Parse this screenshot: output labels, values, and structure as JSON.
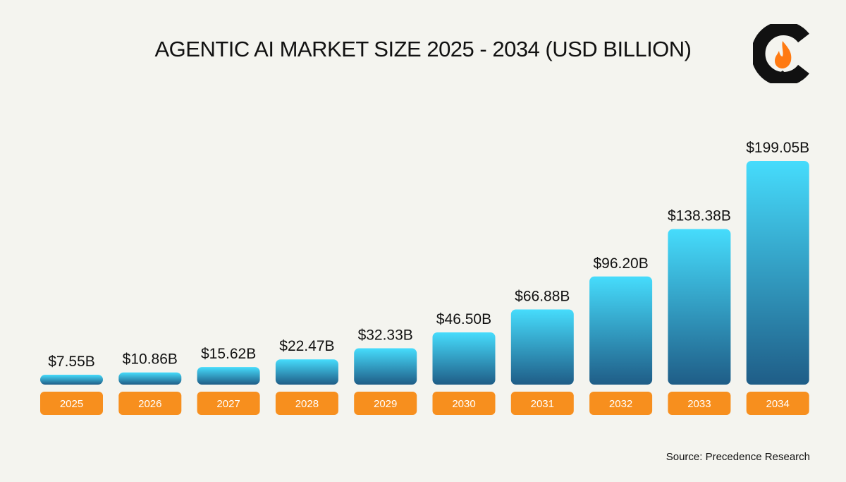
{
  "title": "AGENTIC AI MARKET SIZE 2025 - 2034 (USD BILLION)",
  "source": "Source: Precedence Research",
  "logo": {
    "icon": "flame-in-c-logo",
    "colors": {
      "ring": "#111111",
      "flame": "#ff7a12"
    }
  },
  "colors": {
    "bar_top": "#46dcfc",
    "bar_bottom": "#1f5d87",
    "year_pill": "#f78f1e",
    "background": "#f4f4ef"
  },
  "chart_data": {
    "type": "bar",
    "title": "AGENTIC AI MARKET SIZE 2025 - 2034 (USD BILLION)",
    "categories": [
      "2025",
      "2026",
      "2027",
      "2028",
      "2029",
      "2030",
      "2031",
      "2032",
      "2033",
      "2034"
    ],
    "values": [
      7.55,
      10.86,
      15.62,
      22.47,
      32.33,
      46.5,
      66.88,
      96.2,
      138.38,
      199.05
    ],
    "value_labels": [
      "$7.55B",
      "$10.86B",
      "$15.62B",
      "$22.47B",
      "$32.33B",
      "$46.50B",
      "$66.88B",
      "$96.20B",
      "$138.38B",
      "$199.05B"
    ],
    "unit": "USD Billion",
    "grid": false,
    "legend": "none"
  }
}
